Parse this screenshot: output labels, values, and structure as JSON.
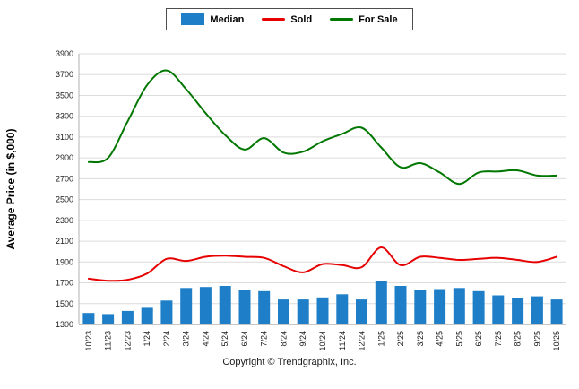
{
  "legend": {
    "items": [
      {
        "label": "Median",
        "color": "#1E7FC8",
        "type": "bar"
      },
      {
        "label": "Sold",
        "color": "#E60000",
        "type": "line"
      },
      {
        "label": "For Sale",
        "color": "#007700",
        "type": "line"
      }
    ]
  },
  "footer": {
    "copyright": "Copyright © Trendgraphix, Inc."
  },
  "chart_data": {
    "type": "bar+line combo",
    "ylabel": "Average Price (in $,000)",
    "ylim": [
      1300,
      3900
    ],
    "ytick_step": 200,
    "yticks": [
      1300,
      1500,
      1700,
      1900,
      2100,
      2300,
      2500,
      2700,
      2900,
      3100,
      3300,
      3500,
      3700,
      3900
    ],
    "grid": true,
    "legend_position": "top",
    "categories": [
      "10/23",
      "11/23",
      "12/23",
      "1/24",
      "2/24",
      "3/24",
      "4/24",
      "5/24",
      "6/24",
      "7/24",
      "8/24",
      "9/24",
      "10/24",
      "11/24",
      "12/24",
      "1/25",
      "2/25",
      "3/25",
      "4/25",
      "5/25",
      "6/25",
      "7/25",
      "8/25",
      "9/25",
      "10/25"
    ],
    "series": [
      {
        "name": "Median",
        "type": "bar",
        "color": "#1E7FC8",
        "values": [
          1410,
          1400,
          1430,
          1460,
          1530,
          1650,
          1660,
          1670,
          1630,
          1620,
          1540,
          1540,
          1560,
          1590,
          1540,
          1720,
          1670,
          1630,
          1640,
          1650,
          1620,
          1580,
          1550,
          1570,
          1540
        ]
      },
      {
        "name": "Sold",
        "type": "line",
        "color": "#E60000",
        "values": [
          1740,
          1720,
          1730,
          1790,
          1930,
          1910,
          1950,
          1960,
          1950,
          1940,
          1860,
          1800,
          1880,
          1870,
          1850,
          2040,
          1870,
          1950,
          1940,
          1920,
          1930,
          1940,
          1920,
          1900,
          1950
        ]
      },
      {
        "name": "For Sale",
        "type": "line",
        "color": "#007700",
        "values": [
          2860,
          2900,
          3250,
          3600,
          3740,
          3560,
          3330,
          3120,
          2980,
          3090,
          2950,
          2960,
          3060,
          3130,
          3190,
          3000,
          2810,
          2850,
          2760,
          2650,
          2760,
          2770,
          2780,
          2730,
          2730
        ]
      }
    ]
  }
}
